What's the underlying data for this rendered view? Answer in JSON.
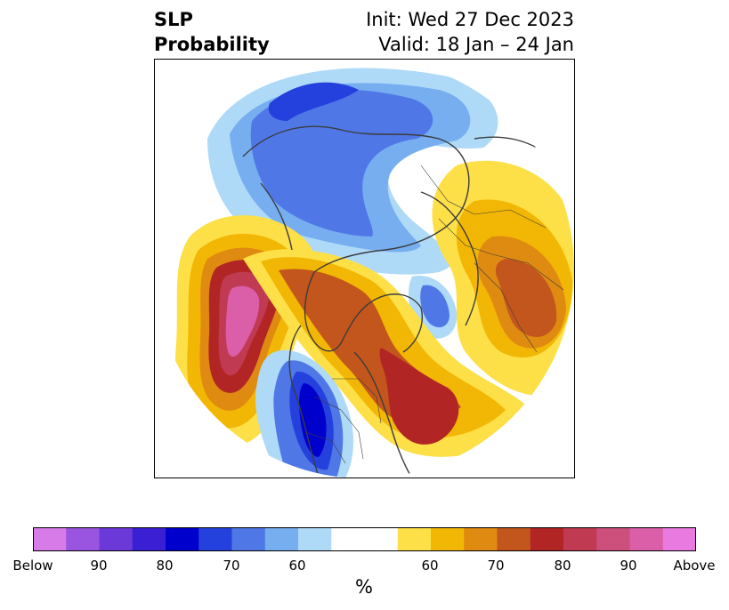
{
  "title": {
    "left_line1": "SLP",
    "left_line2": "Probability",
    "right_line1": "Init: Wed 27 Dec 2023",
    "right_line2": "Valid: 18 Jan – 24 Jan"
  },
  "colorbar": {
    "unit_label": "%",
    "below_colors": [
      "#d67be8",
      "#9a55e0",
      "#6b39d8",
      "#3a1fd4",
      "#0000cd",
      "#2541dd",
      "#4f78e6",
      "#76aef0",
      "#aed9f7"
    ],
    "neutral_color": "#ffffff",
    "above_colors": [
      "#fde047",
      "#f2b705",
      "#df8a10",
      "#c3561c",
      "#b22525",
      "#c03a52",
      "#cc4f7c",
      "#da5ea8",
      "#e87ae0"
    ],
    "tick_labels": [
      {
        "key": "below_end",
        "text": "Below"
      },
      {
        "key": "below_90",
        "text": "90"
      },
      {
        "key": "below_80",
        "text": "80"
      },
      {
        "key": "below_70",
        "text": "70"
      },
      {
        "key": "below_60",
        "text": "60"
      },
      {
        "key": "above_60",
        "text": "60"
      },
      {
        "key": "above_70",
        "text": "70"
      },
      {
        "key": "above_80",
        "text": "80"
      },
      {
        "key": "above_90",
        "text": "90"
      },
      {
        "key": "above_end",
        "text": "Above"
      }
    ]
  }
}
